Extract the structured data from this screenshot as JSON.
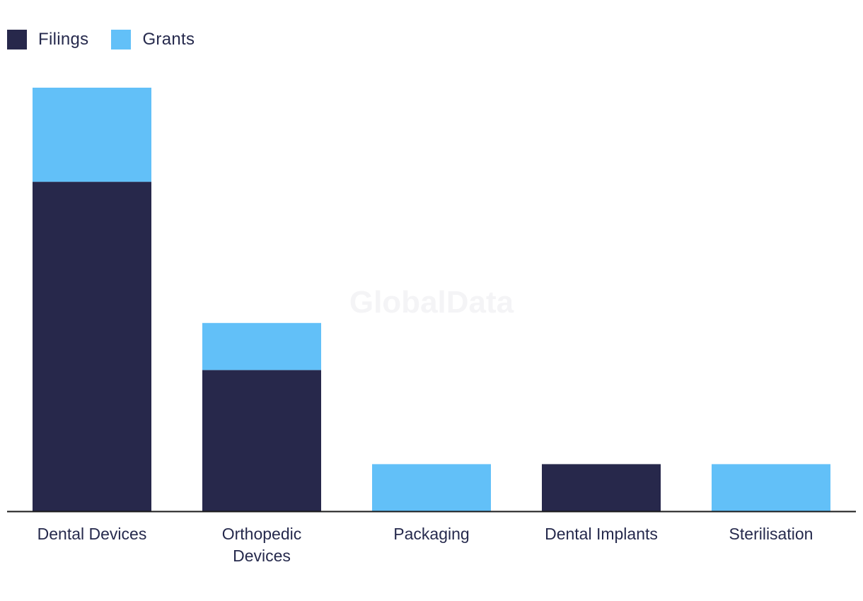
{
  "legend": {
    "items": [
      {
        "label": "Filings",
        "color": "#27284b"
      },
      {
        "label": "Grants",
        "color": "#62c0f8"
      }
    ]
  },
  "watermark": "GlobalData",
  "chart_data": {
    "type": "bar",
    "stacked": true,
    "title": "",
    "xlabel": "",
    "ylabel": "",
    "categories": [
      [
        "Dental Devices"
      ],
      [
        "Orthopedic",
        "Devices"
      ],
      [
        "Packaging"
      ],
      [
        "Dental Implants"
      ],
      [
        "Sterilisation"
      ]
    ],
    "series": [
      {
        "name": "Filings",
        "color": "#27284b",
        "values": [
          7,
          3,
          0,
          1,
          0
        ]
      },
      {
        "name": "Grants",
        "color": "#62c0f8",
        "values": [
          2,
          1,
          1,
          0,
          1
        ]
      }
    ],
    "ylim": [
      0,
      9
    ],
    "grid": false,
    "legend_position": "top-left"
  }
}
